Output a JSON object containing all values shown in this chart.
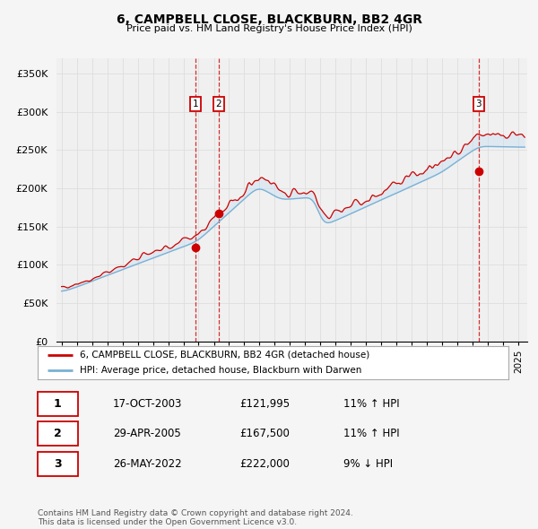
{
  "title": "6, CAMPBELL CLOSE, BLACKBURN, BB2 4GR",
  "subtitle": "Price paid vs. HM Land Registry's House Price Index (HPI)",
  "ylim": [
    0,
    370000
  ],
  "yticks": [
    0,
    50000,
    100000,
    150000,
    200000,
    250000,
    300000,
    350000
  ],
  "ytick_labels": [
    "£0",
    "£50K",
    "£100K",
    "£150K",
    "£200K",
    "£250K",
    "£300K",
    "£350K"
  ],
  "line_color_sales": "#cc0000",
  "line_color_hpi": "#7ab0d4",
  "shade_color": "#c8dff0",
  "legend_sales": "6, CAMPBELL CLOSE, BLACKBURN, BB2 4GR (detached house)",
  "legend_hpi": "HPI: Average price, detached house, Blackburn with Darwen",
  "table_rows": [
    [
      "1",
      "17-OCT-2003",
      "£121,995",
      "11% ↑ HPI"
    ],
    [
      "2",
      "29-APR-2005",
      "£167,500",
      "11% ↑ HPI"
    ],
    [
      "3",
      "26-MAY-2022",
      "£222,000",
      "9% ↓ HPI"
    ]
  ],
  "footer": "Contains HM Land Registry data © Crown copyright and database right 2024.\nThis data is licensed under the Open Government Licence v3.0.",
  "bg_color": "#f5f5f5",
  "plot_bg_color": "#f0f0f0",
  "grid_color": "#dddddd"
}
